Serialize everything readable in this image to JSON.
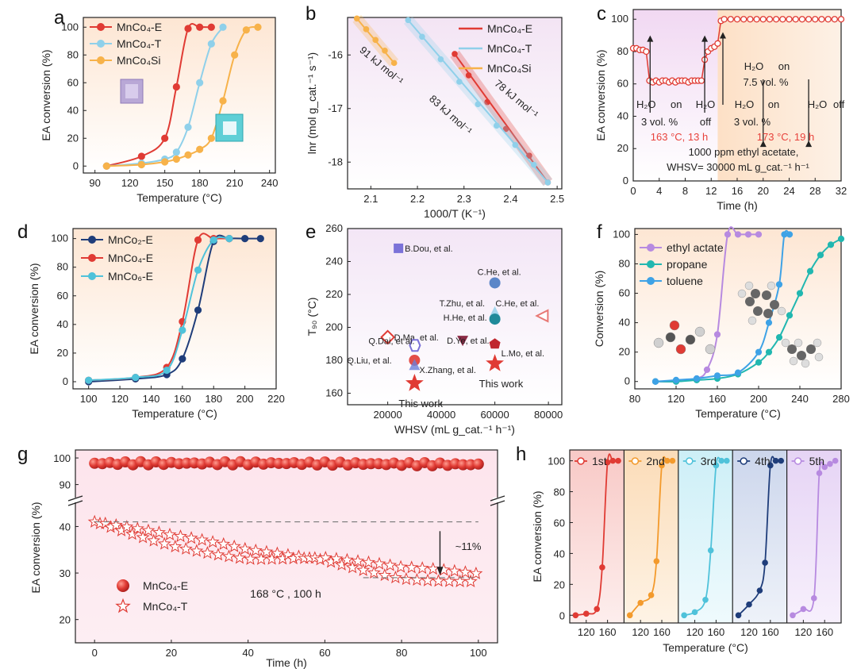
{
  "colors": {
    "red": "#e03b34",
    "lightblue": "#8fd0ea",
    "orange": "#f7b24a",
    "navy": "#1f3d7a",
    "cyan": "#4fc2da",
    "purple": "#b78ae0",
    "teal": "#21b7b0",
    "skyblue": "#3ea2e6"
  },
  "chart_data": [
    {
      "id": "a",
      "panel_label": "a",
      "type": "line",
      "xlabel": "Temperature (°C)",
      "ylabel": "EA conversion (%)",
      "xlim": [
        80,
        245
      ],
      "ylim": [
        -5,
        107
      ],
      "xticks": [
        90,
        120,
        150,
        180,
        210,
        240
      ],
      "yticks": [
        0,
        20,
        40,
        60,
        80,
        100
      ],
      "legend": "top-left",
      "series": [
        {
          "name": "MnCo₄-E",
          "color": "#e03b34",
          "marker": "circle",
          "x": [
            100,
            130,
            150,
            160,
            170,
            180,
            190
          ],
          "y": [
            0,
            7,
            20,
            57,
            99,
            100,
            100
          ]
        },
        {
          "name": "MnCo₄-T",
          "color": "#8fd0ea",
          "marker": "circle",
          "x": [
            100,
            130,
            150,
            160,
            170,
            180,
            190,
            200
          ],
          "y": [
            0,
            2,
            5,
            10,
            28,
            60,
            88,
            100
          ]
        },
        {
          "name": "MnCo₄Si",
          "color": "#f7b24a",
          "marker": "circle",
          "x": [
            100,
            130,
            150,
            160,
            170,
            180,
            190,
            200,
            210,
            220,
            230
          ],
          "y": [
            0,
            1,
            3,
            5,
            8,
            12,
            20,
            47,
            80,
            98,
            100
          ]
        }
      ]
    },
    {
      "id": "b",
      "panel_label": "b",
      "type": "line",
      "xlabel": "1000/T (K⁻¹)",
      "ylabel": "lnr (mol g_cat.⁻¹ s⁻¹)",
      "xlim": [
        2.05,
        2.51
      ],
      "ylim": [
        -18.5,
        -15.3
      ],
      "xticks": [
        2.1,
        2.2,
        2.3,
        2.4,
        2.5
      ],
      "yticks": [
        -16,
        -17,
        -18
      ],
      "legend": "top-right",
      "series": [
        {
          "name": "MnCo₄-E",
          "color": "#e03b34",
          "marker": "circle",
          "x": [
            2.28,
            2.31,
            2.35,
            2.39,
            2.44,
            2.48
          ],
          "y": [
            -15.98,
            -16.38,
            -16.88,
            -17.38,
            -17.88,
            -18.38
          ]
        },
        {
          "name": "MnCo₄-T",
          "color": "#8fd0ea",
          "marker": "circle",
          "x": [
            2.18,
            2.21,
            2.25,
            2.29,
            2.33,
            2.37,
            2.41,
            2.45,
            2.48
          ],
          "y": [
            -15.35,
            -15.66,
            -16.08,
            -16.5,
            -16.92,
            -17.32,
            -17.68,
            -18.05,
            -18.38
          ]
        },
        {
          "name": "MnCo₄Si",
          "color": "#f7b24a",
          "marker": "circle",
          "x": [
            2.07,
            2.09,
            2.11,
            2.13,
            2.15
          ],
          "y": [
            -15.32,
            -15.52,
            -15.72,
            -15.92,
            -16.15
          ]
        }
      ],
      "annotations": [
        {
          "text": "91 kJ mol⁻¹"
        },
        {
          "text": "83 kJ mol⁻¹"
        },
        {
          "text": "78 kJ mol⁻¹"
        }
      ]
    },
    {
      "id": "c",
      "panel_label": "c",
      "type": "line",
      "xlabel": "Time (h)",
      "ylabel": "EA conversion (%)",
      "xlim": [
        0,
        32
      ],
      "ylim": [
        0,
        106
      ],
      "xticks": [
        0,
        4,
        8,
        12,
        16,
        20,
        24,
        28,
        32
      ],
      "yticks": [
        0,
        20,
        40,
        60,
        80,
        100
      ],
      "series": [
        {
          "name": "",
          "color": "#e03b34",
          "marker": "circle",
          "x": [
            0,
            0.5,
            1,
            1.5,
            2,
            2.5,
            3,
            3.5,
            4,
            4.5,
            5,
            5.5,
            6,
            6.5,
            7,
            7.5,
            8,
            8.5,
            9,
            9.5,
            10,
            10.5,
            11,
            11.5,
            12,
            12.5,
            13,
            13.5,
            14,
            15,
            16,
            17,
            18,
            19,
            20,
            21,
            22,
            23,
            24,
            25,
            26,
            27,
            28,
            29,
            30,
            31,
            32
          ],
          "y": [
            82,
            82,
            81,
            81,
            80,
            62,
            61,
            62,
            61,
            62,
            62,
            61,
            62,
            61,
            62,
            62,
            62,
            61,
            62,
            62,
            62,
            62,
            75,
            80,
            82,
            83,
            85,
            99,
            100,
            100,
            100,
            100,
            100,
            100,
            100,
            100,
            100,
            100,
            100,
            100,
            100,
            100,
            100,
            100,
            100,
            100,
            100
          ]
        }
      ],
      "annotations": [
        {
          "text": "H₂O on"
        },
        {
          "text": "3 vol. %"
        },
        {
          "text": "H₂O"
        },
        {
          "text": "off"
        },
        {
          "text": "H₂O on"
        },
        {
          "text": "3 vol. %"
        },
        {
          "text": "H₂O on"
        },
        {
          "text": "7.5 vol. %"
        },
        {
          "text": "H₂O off"
        },
        {
          "text": "163 °C, 13 h"
        },
        {
          "text": "173 °C, 19 h"
        },
        {
          "text": "1000 ppm ethyl acetate,"
        },
        {
          "text": "WHSV= 30000 mL g_cat.⁻¹ h⁻¹"
        }
      ]
    },
    {
      "id": "d",
      "panel_label": "d",
      "type": "line",
      "xlabel": "Temperature (°C)",
      "ylabel": "EA conversion (%)",
      "xlim": [
        90,
        220
      ],
      "ylim": [
        -5,
        107
      ],
      "xticks": [
        100,
        120,
        140,
        160,
        180,
        200,
        220
      ],
      "yticks": [
        0,
        20,
        40,
        60,
        80,
        100
      ],
      "legend": "top-left",
      "series": [
        {
          "name": "MnCo₂-E",
          "color": "#1f3d7a",
          "marker": "circle",
          "x": [
            100,
            130,
            150,
            160,
            170,
            180,
            190,
            200,
            210
          ],
          "y": [
            0,
            2,
            5,
            16,
            50,
            98,
            100,
            100,
            100
          ]
        },
        {
          "name": "MnCo₄-E",
          "color": "#e03b34",
          "marker": "circle",
          "x": [
            100,
            130,
            150,
            160,
            170,
            180,
            190
          ],
          "y": [
            1,
            3,
            10,
            42,
            99,
            100,
            100
          ]
        },
        {
          "name": "MnCo₆-E",
          "color": "#4fc2da",
          "marker": "circle",
          "x": [
            100,
            130,
            150,
            160,
            170,
            180,
            190
          ],
          "y": [
            1,
            3,
            8,
            36,
            78,
            99,
            100
          ]
        }
      ]
    },
    {
      "id": "e",
      "panel_label": "e",
      "type": "scatter",
      "xlabel": "WHSV (mL g_cat.⁻¹ h⁻¹)",
      "ylabel": "T₉₀ (°C)",
      "xlim": [
        5000,
        85000
      ],
      "ylim": [
        153,
        260
      ],
      "xticks": [
        20000,
        40000,
        60000,
        80000
      ],
      "yticks": [
        160,
        180,
        200,
        220,
        240,
        260
      ],
      "points": [
        {
          "label": "B.Dou, et al.",
          "x": 24000,
          "y": 248,
          "color": "#7b72d8",
          "marker": "square"
        },
        {
          "label": "C.He, et al.",
          "x": 60000,
          "y": 227,
          "color": "#5b86c8",
          "marker": "circle"
        },
        {
          "label": "T.Zhu, et al.",
          "x": 60000,
          "y": 209,
          "color": "#8fd0ea",
          "marker": "triangle"
        },
        {
          "label": "C.He, et al.",
          "x": 78000,
          "y": 207,
          "color": "#e87874",
          "marker": "tri-left"
        },
        {
          "label": "H.He, et al.",
          "x": 60000,
          "y": 205,
          "color": "#1f8a9a",
          "marker": "halfcircle"
        },
        {
          "label": "D.Ma, et al.",
          "x": 20000,
          "y": 194,
          "color": "#e03b34",
          "marker": "diamond"
        },
        {
          "label": "Q.Dai, et al.",
          "x": 30000,
          "y": 189,
          "color": "#7b72d8",
          "marker": "hex"
        },
        {
          "label": "D.Ye, et al.",
          "x": 48000,
          "y": 192,
          "color": "#8b2a45",
          "marker": "tri-down"
        },
        {
          "label": "L.Mo, et al.",
          "x": 60000,
          "y": 190,
          "color": "#c0262e",
          "marker": "pentagon"
        },
        {
          "label": "Q.Liu, et al.",
          "x": 30000,
          "y": 180,
          "color": "#e03b34",
          "marker": "circle-half"
        },
        {
          "label": "X.Zhang, et al.",
          "x": 30000,
          "y": 177,
          "color": "#6b7fd8",
          "marker": "triangle"
        },
        {
          "label": "This work",
          "x": 30000,
          "y": 166,
          "color": "#e03b34",
          "marker": "star"
        },
        {
          "label": "This work",
          "x": 60000,
          "y": 178,
          "color": "#e03b34",
          "marker": "star"
        }
      ]
    },
    {
      "id": "f",
      "panel_label": "f",
      "type": "line",
      "xlabel": "Temperature (°C)",
      "ylabel": "Conversion (%)",
      "xlim": [
        80,
        280
      ],
      "ylim": [
        -5,
        104
      ],
      "xticks": [
        80,
        120,
        160,
        200,
        240,
        280
      ],
      "yticks": [
        0,
        20,
        40,
        60,
        80,
        100
      ],
      "legend": "top-left",
      "series": [
        {
          "name": "ethyl actate",
          "color": "#b78ae0",
          "marker": "circle",
          "x": [
            100,
            120,
            140,
            150,
            160,
            170,
            180,
            190,
            200
          ],
          "y": [
            0,
            0,
            2,
            8,
            32,
            100,
            100,
            100,
            100
          ]
        },
        {
          "name": "propane",
          "color": "#21b7b0",
          "marker": "circle",
          "x": [
            100,
            120,
            140,
            160,
            180,
            200,
            210,
            220,
            230,
            240,
            250,
            260,
            270,
            280
          ],
          "y": [
            0,
            0,
            1,
            2,
            5,
            13,
            20,
            30,
            45,
            60,
            75,
            86,
            93,
            97
          ]
        },
        {
          "name": "toluene",
          "color": "#3ea2e6",
          "marker": "circle",
          "x": [
            100,
            120,
            140,
            160,
            180,
            200,
            210,
            220,
            225,
            230
          ],
          "y": [
            0,
            1,
            2,
            4,
            6,
            20,
            40,
            66,
            100,
            100
          ]
        }
      ]
    },
    {
      "id": "g",
      "panel_label": "g",
      "type": "scatter",
      "xlabel": "Time (h)",
      "ylabel": "EA conversion (%)",
      "xlim": [
        -5,
        105
      ],
      "xticks": [
        0,
        20,
        40,
        60,
        80,
        100
      ],
      "yticks_upper": [
        90,
        100
      ],
      "yticks_lower": [
        20,
        30,
        40
      ],
      "series": [
        {
          "name": "MnCo₄-E",
          "color": "#e03b34",
          "marker": "sphere",
          "trend": [
            [
              0,
              98
            ],
            [
              50,
              98
            ],
            [
              100,
              97.5
            ]
          ]
        },
        {
          "name": "MnCo₄-T",
          "color": "#e03b34",
          "marker": "open-star",
          "trend": [
            [
              0,
              41
            ],
            [
              20,
              37
            ],
            [
              40,
              34
            ],
            [
              60,
              33
            ],
            [
              80,
              30
            ],
            [
              100,
              29
            ]
          ]
        }
      ],
      "annotations": [
        {
          "text": "~11%"
        },
        {
          "text": "168 °C , 100 h"
        }
      ]
    },
    {
      "id": "h",
      "panel_label": "h",
      "type": "line",
      "xlabel": "Temperature (°C)",
      "ylabel": "EA conversion (%)",
      "ylim": [
        -5,
        107
      ],
      "yticks": [
        0,
        20,
        40,
        60,
        80,
        100
      ],
      "xticks": [
        120,
        160
      ],
      "series": [
        {
          "name": "1st",
          "color": "#e03b34",
          "x": [
            100,
            120,
            140,
            150,
            160,
            170,
            180
          ],
          "y": [
            0,
            1,
            4,
            31,
            99,
            100,
            100
          ]
        },
        {
          "name": "2nd",
          "color": "#f39a2c",
          "x": [
            100,
            120,
            140,
            150,
            160,
            170,
            180
          ],
          "y": [
            0,
            8,
            13,
            35,
            97,
            100,
            100
          ]
        },
        {
          "name": "3rd",
          "color": "#4fc2da",
          "x": [
            100,
            120,
            140,
            150,
            160,
            170,
            180
          ],
          "y": [
            0,
            2,
            10,
            42,
            97,
            100,
            100
          ]
        },
        {
          "name": "4th",
          "color": "#1f3d7a",
          "x": [
            100,
            120,
            140,
            150,
            160,
            170,
            180
          ],
          "y": [
            0,
            7,
            16,
            34,
            97,
            100,
            100
          ]
        },
        {
          "name": "5th",
          "color": "#b78ae0",
          "x": [
            100,
            120,
            140,
            150,
            160,
            170,
            180
          ],
          "y": [
            0,
            4,
            11,
            92,
            96,
            98,
            100
          ]
        }
      ]
    }
  ]
}
